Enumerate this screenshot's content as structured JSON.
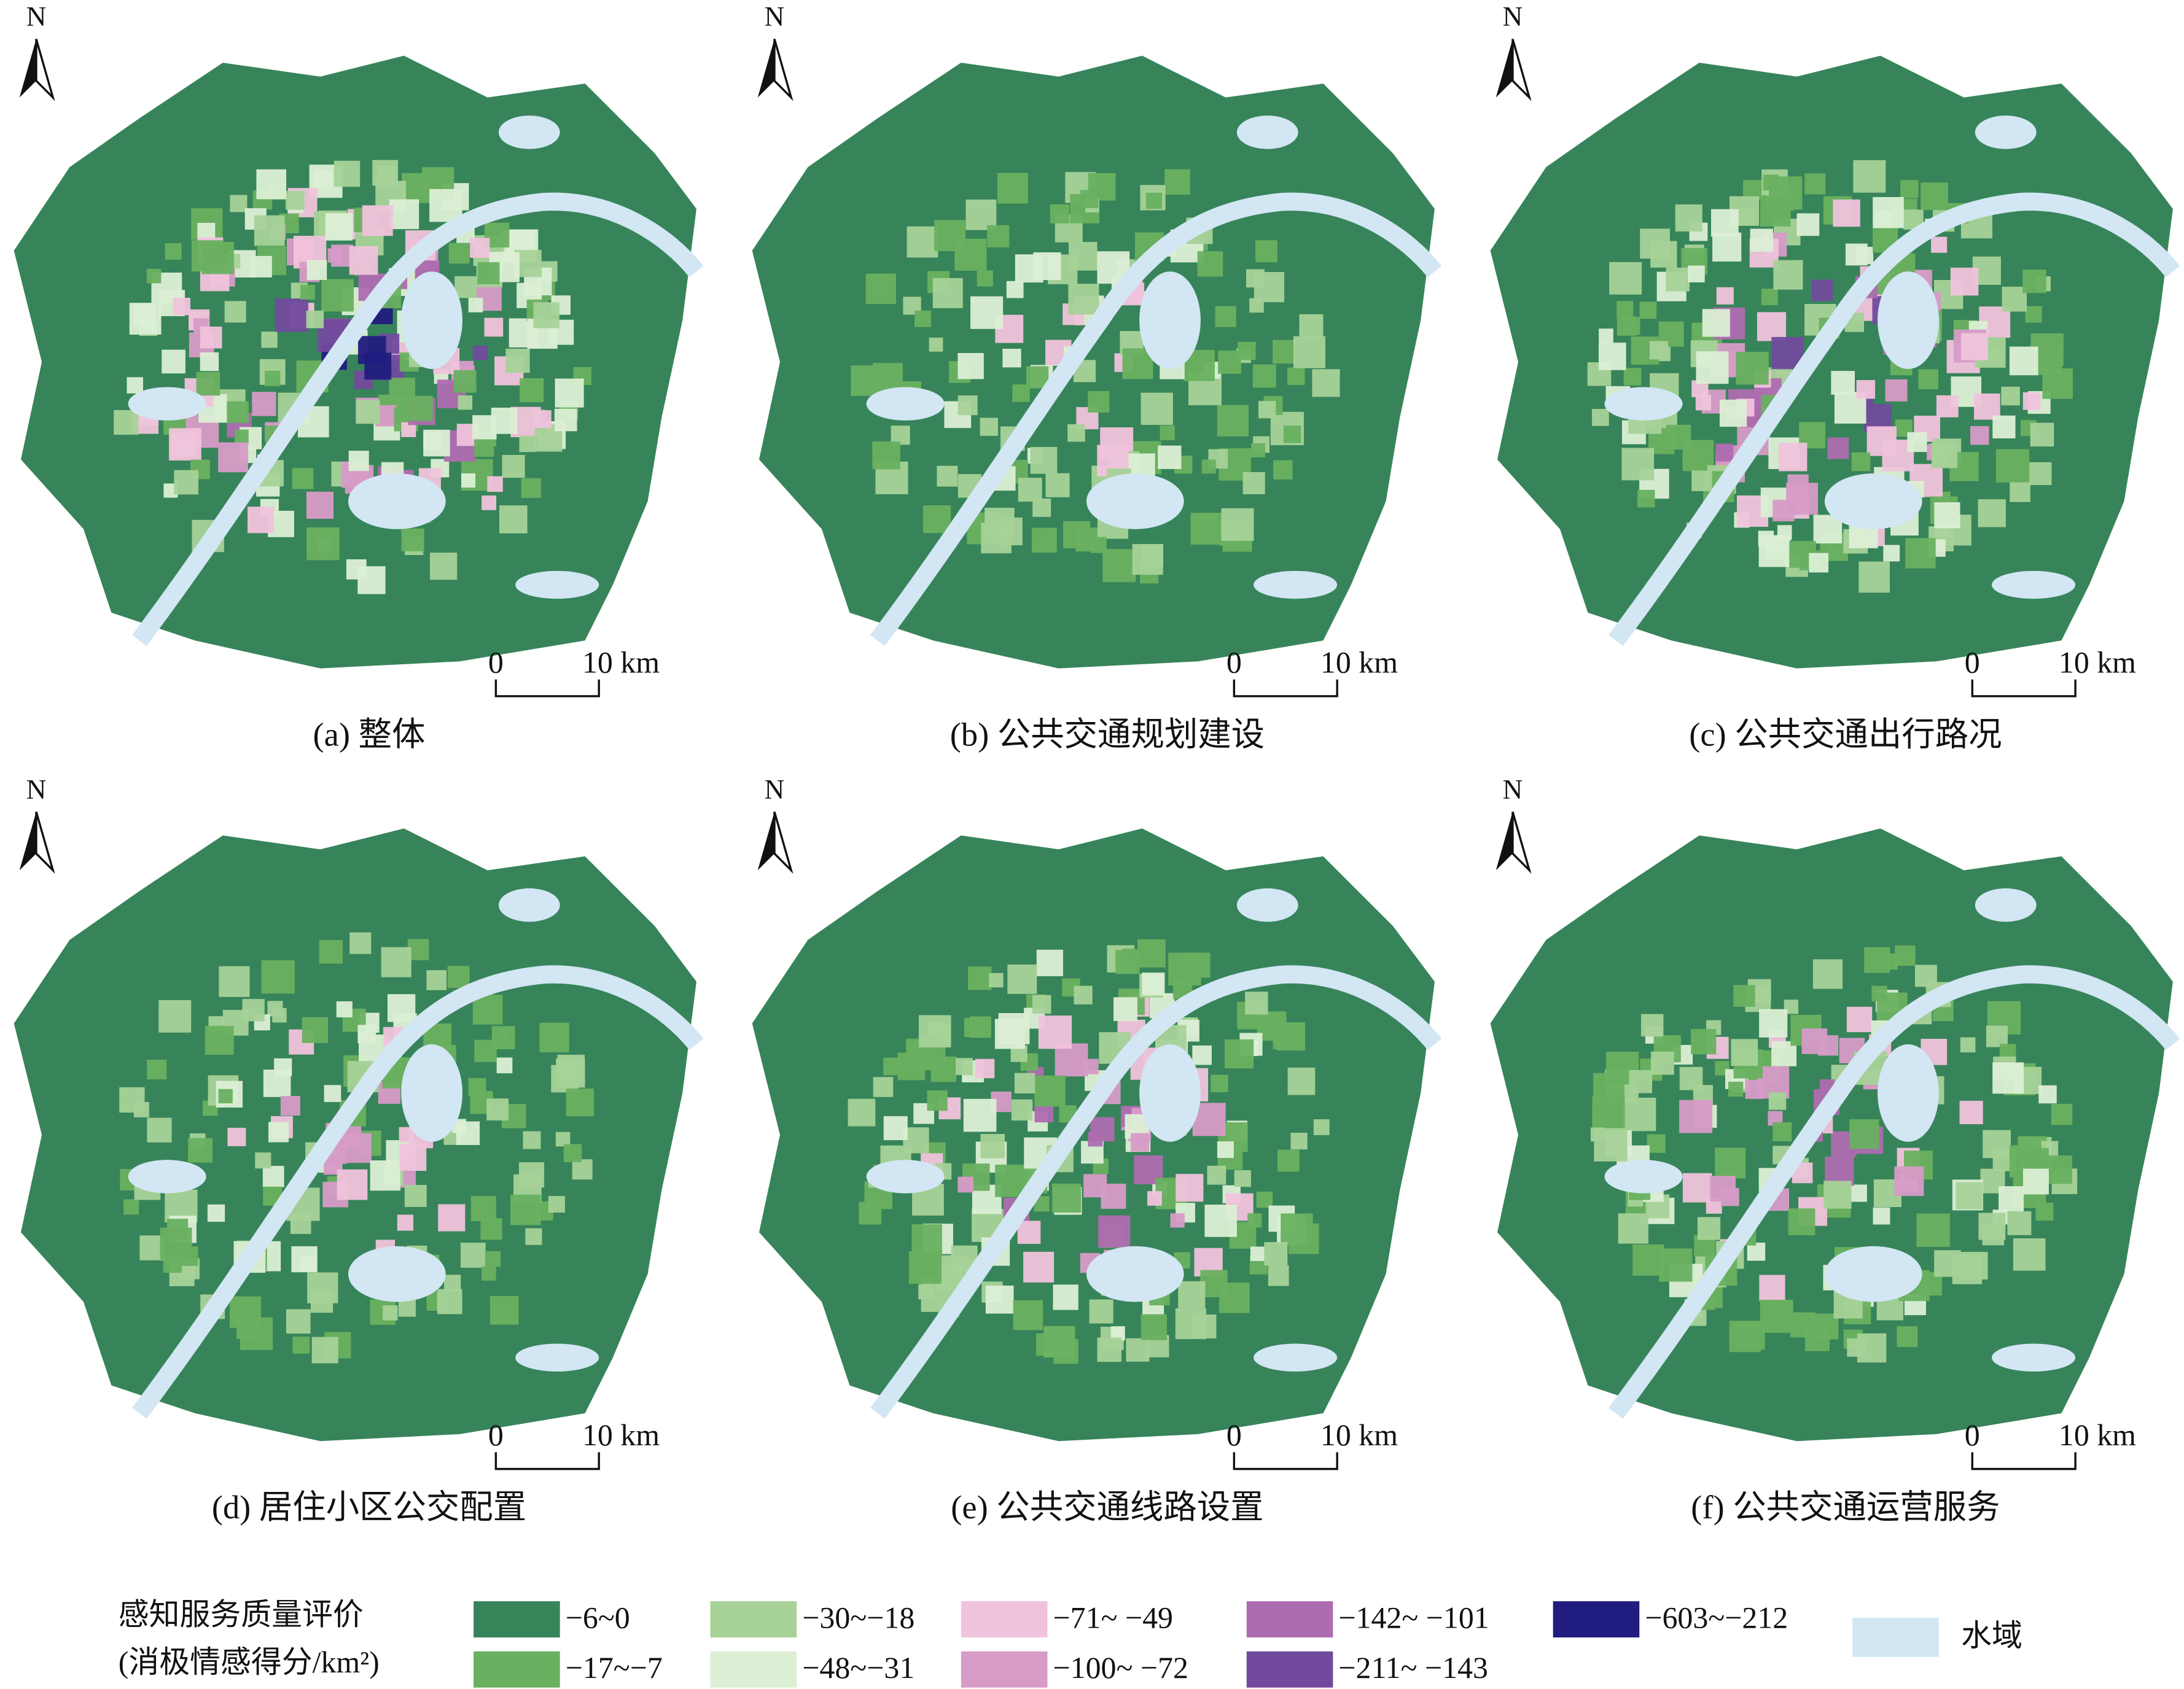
{
  "panels": [
    {
      "caption": "(a) 整体",
      "north": "N",
      "scale": {
        "start": "0",
        "end": "10 km"
      }
    },
    {
      "caption": "(b) 公共交通规划建设",
      "north": "N",
      "scale": {
        "start": "0",
        "end": "10 km"
      }
    },
    {
      "caption": "(c) 公共交通出行路况",
      "north": "N",
      "scale": {
        "start": "0",
        "end": "10 km"
      }
    },
    {
      "caption": "(d) 居住小区公交配置",
      "north": "N",
      "scale": {
        "start": "0",
        "end": "10 km"
      }
    },
    {
      "caption": "(e) 公共交通线路设置",
      "north": "N",
      "scale": {
        "start": "0",
        "end": "10 km"
      }
    },
    {
      "caption": "(f) 公共交通运营服务",
      "north": "N",
      "scale": {
        "start": "0",
        "end": "10 km"
      }
    }
  ],
  "legend": {
    "title": [
      "感知服务质量评价",
      "(消极情感得分/km²)"
    ],
    "items": [
      {
        "label": "−6~0",
        "color": "#37845a"
      },
      {
        "label": "−17~−7",
        "color": "#69b060"
      },
      {
        "label": "−30~−18",
        "color": "#a6d298"
      },
      {
        "label": "−48~−31",
        "color": "#dcefd5"
      },
      {
        "label": "−71~ −49",
        "color": "#f0c3dc"
      },
      {
        "label": "−100~ −72",
        "color": "#d79bc7"
      },
      {
        "label": "−142~ −101",
        "color": "#ae6cb0"
      },
      {
        "label": "−211~ −143",
        "color": "#714a9d"
      },
      {
        "label": "−603~−212",
        "color": "#211c80"
      }
    ],
    "water": {
      "label": "水域",
      "color": "#d2e6f3"
    }
  }
}
